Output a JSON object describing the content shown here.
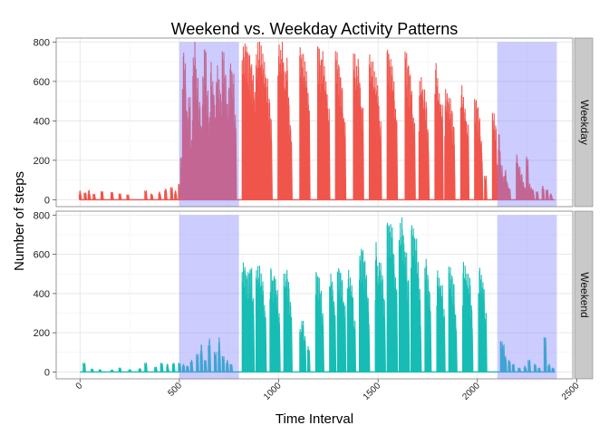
{
  "chart_data": {
    "type": "line",
    "title": "Weekend vs. Weekday Activity Patterns",
    "xlabel": "Time Interval",
    "ylabel": "Number of steps",
    "xlim": [
      -120,
      2480
    ],
    "ylim": [
      -35,
      820
    ],
    "x_ticks": [
      0,
      500,
      1000,
      1500,
      2000,
      2500
    ],
    "y_ticks": [
      0,
      200,
      400,
      600,
      800
    ],
    "grid": true,
    "shaded_regions": [
      {
        "from": 500,
        "to": 800,
        "top": 800,
        "color": "#8080ff"
      },
      {
        "from": 2100,
        "to": 2400,
        "top": 800,
        "color": "#8080ff"
      }
    ],
    "panels": [
      {
        "strip_label": "Weekday",
        "line_color": "#f0554c",
        "bursts": [
          [
            0,
            45
          ],
          [
            25,
            35
          ],
          [
            45,
            48
          ],
          [
            70,
            28
          ],
          [
            110,
            42
          ],
          [
            160,
            38
          ],
          [
            200,
            30
          ],
          [
            240,
            25
          ],
          [
            330,
            45
          ],
          [
            360,
            30
          ],
          [
            400,
            40
          ],
          [
            430,
            55
          ],
          [
            460,
            62
          ],
          [
            480,
            45
          ],
          [
            500,
            80
          ],
          [
            510,
            220
          ],
          [
            520,
            760
          ],
          [
            530,
            700
          ],
          [
            540,
            450
          ],
          [
            550,
            520
          ],
          [
            560,
            300
          ],
          [
            570,
            720
          ],
          [
            580,
            800
          ],
          [
            590,
            620
          ],
          [
            600,
            500
          ],
          [
            610,
            380
          ],
          [
            620,
            640
          ],
          [
            630,
            785
          ],
          [
            640,
            560
          ],
          [
            650,
            420
          ],
          [
            660,
            700
          ],
          [
            670,
            600
          ],
          [
            680,
            480
          ],
          [
            690,
            680
          ],
          [
            700,
            610
          ],
          [
            710,
            540
          ],
          [
            720,
            760
          ],
          [
            730,
            650
          ],
          [
            740,
            500
          ],
          [
            750,
            580
          ],
          [
            760,
            700
          ],
          [
            770,
            640
          ],
          [
            780,
            430
          ],
          [
            820,
            780
          ],
          [
            830,
            800
          ],
          [
            840,
            790
          ],
          [
            850,
            760
          ],
          [
            860,
            700
          ],
          [
            870,
            640
          ],
          [
            880,
            550
          ],
          [
            890,
            740
          ],
          [
            900,
            800
          ],
          [
            910,
            780
          ],
          [
            920,
            740
          ],
          [
            930,
            700
          ],
          [
            940,
            620
          ],
          [
            950,
            520
          ],
          [
            960,
            420
          ],
          [
            1000,
            790
          ],
          [
            1010,
            760
          ],
          [
            1020,
            800
          ],
          [
            1030,
            650
          ],
          [
            1040,
            720
          ],
          [
            1050,
            520
          ],
          [
            1060,
            380
          ],
          [
            1110,
            780
          ],
          [
            1120,
            740
          ],
          [
            1130,
            700
          ],
          [
            1140,
            650
          ],
          [
            1150,
            540
          ],
          [
            1200,
            800
          ],
          [
            1210,
            720
          ],
          [
            1220,
            760
          ],
          [
            1230,
            680
          ],
          [
            1240,
            600
          ],
          [
            1250,
            460
          ],
          [
            1290,
            760
          ],
          [
            1300,
            700
          ],
          [
            1310,
            640
          ],
          [
            1320,
            580
          ],
          [
            1330,
            420
          ],
          [
            1380,
            740
          ],
          [
            1390,
            680
          ],
          [
            1400,
            720
          ],
          [
            1410,
            600
          ],
          [
            1420,
            480
          ],
          [
            1460,
            740
          ],
          [
            1470,
            700
          ],
          [
            1480,
            650
          ],
          [
            1490,
            620
          ],
          [
            1500,
            580
          ],
          [
            1510,
            400
          ],
          [
            1550,
            780
          ],
          [
            1560,
            720
          ],
          [
            1570,
            680
          ],
          [
            1580,
            600
          ],
          [
            1590,
            460
          ],
          [
            1640,
            760
          ],
          [
            1650,
            700
          ],
          [
            1660,
            650
          ],
          [
            1670,
            560
          ],
          [
            1680,
            420
          ],
          [
            1710,
            600
          ],
          [
            1720,
            620
          ],
          [
            1730,
            560
          ],
          [
            1740,
            500
          ],
          [
            1750,
            360
          ],
          [
            1790,
            700
          ],
          [
            1800,
            620
          ],
          [
            1810,
            540
          ],
          [
            1820,
            480
          ],
          [
            1840,
            560
          ],
          [
            1850,
            540
          ],
          [
            1860,
            520
          ],
          [
            1870,
            460
          ],
          [
            1880,
            380
          ],
          [
            1920,
            580
          ],
          [
            1930,
            520
          ],
          [
            1940,
            460
          ],
          [
            1950,
            380
          ],
          [
            1990,
            520
          ],
          [
            2000,
            480
          ],
          [
            2010,
            420
          ],
          [
            2020,
            300
          ],
          [
            2040,
            120
          ],
          [
            2080,
            440
          ],
          [
            2090,
            380
          ],
          [
            2100,
            180
          ],
          [
            2110,
            340
          ],
          [
            2120,
            180
          ],
          [
            2130,
            120
          ],
          [
            2140,
            150
          ],
          [
            2150,
            90
          ],
          [
            2160,
            60
          ],
          [
            2200,
            230
          ],
          [
            2210,
            170
          ],
          [
            2220,
            130
          ],
          [
            2230,
            90
          ],
          [
            2240,
            60
          ],
          [
            2250,
            220
          ],
          [
            2260,
            80
          ],
          [
            2270,
            60
          ],
          [
            2280,
            50
          ],
          [
            2300,
            40
          ],
          [
            2330,
            70
          ],
          [
            2350,
            50
          ],
          [
            2370,
            30
          ]
        ]
      },
      {
        "strip_label": "Weekend",
        "line_color": "#17bdb4",
        "bursts": [
          [
            20,
            45
          ],
          [
            60,
            15
          ],
          [
            100,
            12
          ],
          [
            160,
            10
          ],
          [
            200,
            20
          ],
          [
            250,
            12
          ],
          [
            300,
            18
          ],
          [
            330,
            45
          ],
          [
            380,
            25
          ],
          [
            410,
            45
          ],
          [
            440,
            40
          ],
          [
            470,
            45
          ],
          [
            500,
            45
          ],
          [
            520,
            40
          ],
          [
            540,
            30
          ],
          [
            560,
            60
          ],
          [
            590,
            90
          ],
          [
            610,
            140
          ],
          [
            630,
            60
          ],
          [
            650,
            170
          ],
          [
            680,
            100
          ],
          [
            700,
            175
          ],
          [
            720,
            80
          ],
          [
            740,
            60
          ],
          [
            760,
            40
          ],
          [
            820,
            560
          ],
          [
            830,
            540
          ],
          [
            840,
            500
          ],
          [
            850,
            520
          ],
          [
            860,
            540
          ],
          [
            870,
            380
          ],
          [
            890,
            520
          ],
          [
            900,
            540
          ],
          [
            910,
            500
          ],
          [
            920,
            460
          ],
          [
            930,
            340
          ],
          [
            960,
            540
          ],
          [
            970,
            480
          ],
          [
            980,
            500
          ],
          [
            990,
            420
          ],
          [
            1000,
            300
          ],
          [
            1030,
            500
          ],
          [
            1040,
            520
          ],
          [
            1050,
            460
          ],
          [
            1060,
            360
          ],
          [
            1110,
            220
          ],
          [
            1120,
            260
          ],
          [
            1130,
            180
          ],
          [
            1150,
            130
          ],
          [
            1190,
            520
          ],
          [
            1200,
            500
          ],
          [
            1210,
            420
          ],
          [
            1220,
            300
          ],
          [
            1260,
            500
          ],
          [
            1270,
            460
          ],
          [
            1280,
            360
          ],
          [
            1300,
            540
          ],
          [
            1310,
            520
          ],
          [
            1320,
            480
          ],
          [
            1330,
            360
          ],
          [
            1350,
            520
          ],
          [
            1360,
            480
          ],
          [
            1370,
            440
          ],
          [
            1380,
            260
          ],
          [
            1410,
            600
          ],
          [
            1420,
            640
          ],
          [
            1430,
            580
          ],
          [
            1440,
            500
          ],
          [
            1450,
            380
          ],
          [
            1490,
            660
          ],
          [
            1500,
            540
          ],
          [
            1510,
            560
          ],
          [
            1520,
            500
          ],
          [
            1530,
            380
          ],
          [
            1550,
            780
          ],
          [
            1560,
            760
          ],
          [
            1570,
            740
          ],
          [
            1580,
            600
          ],
          [
            1590,
            480
          ],
          [
            1610,
            760
          ],
          [
            1620,
            790
          ],
          [
            1630,
            700
          ],
          [
            1640,
            620
          ],
          [
            1650,
            480
          ],
          [
            1670,
            760
          ],
          [
            1680,
            740
          ],
          [
            1690,
            680
          ],
          [
            1700,
            560
          ],
          [
            1710,
            420
          ],
          [
            1740,
            580
          ],
          [
            1750,
            500
          ],
          [
            1760,
            420
          ],
          [
            1800,
            520
          ],
          [
            1810,
            480
          ],
          [
            1820,
            440
          ],
          [
            1830,
            320
          ],
          [
            1860,
            540
          ],
          [
            1870,
            500
          ],
          [
            1880,
            460
          ],
          [
            1890,
            300
          ],
          [
            1930,
            560
          ],
          [
            1940,
            540
          ],
          [
            1950,
            500
          ],
          [
            1960,
            480
          ],
          [
            1970,
            340
          ],
          [
            2010,
            540
          ],
          [
            2020,
            500
          ],
          [
            2030,
            460
          ],
          [
            2040,
            300
          ],
          [
            2120,
            160
          ],
          [
            2130,
            140
          ],
          [
            2140,
            80
          ],
          [
            2160,
            60
          ],
          [
            2180,
            40
          ],
          [
            2210,
            20
          ],
          [
            2240,
            30
          ],
          [
            2260,
            60
          ],
          [
            2290,
            40
          ],
          [
            2310,
            20
          ],
          [
            2340,
            180
          ],
          [
            2360,
            40
          ],
          [
            2380,
            20
          ]
        ]
      }
    ]
  }
}
